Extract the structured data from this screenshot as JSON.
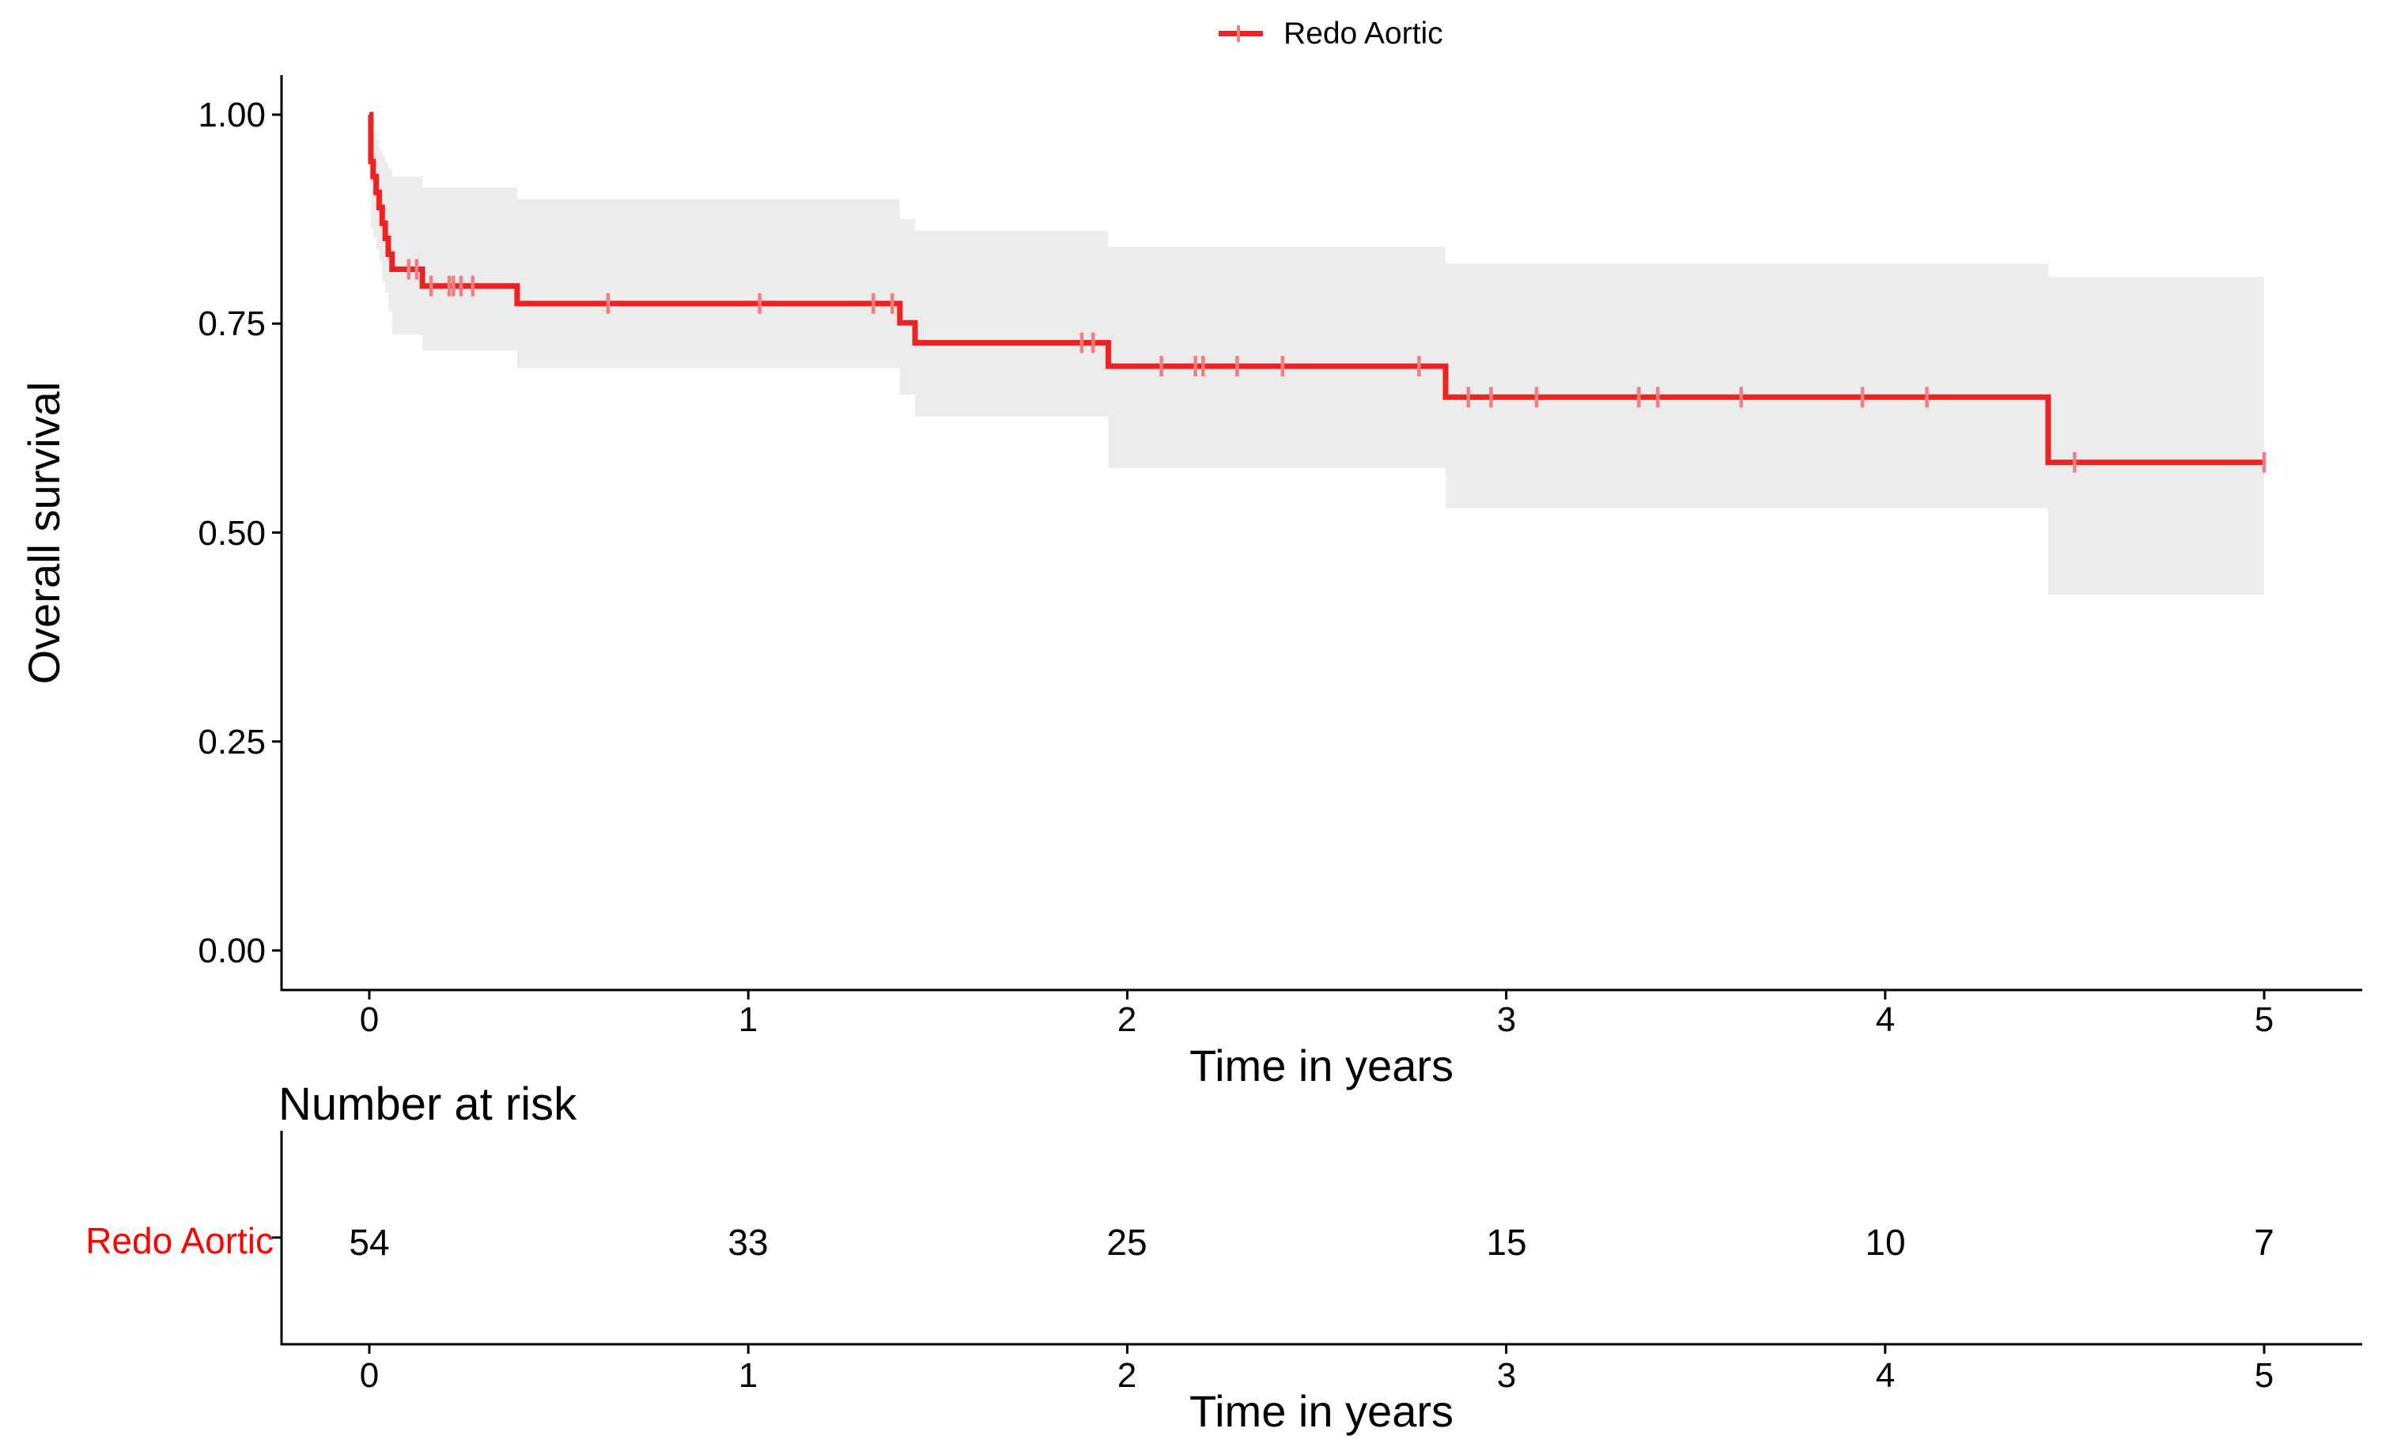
{
  "legend": {
    "label": "Redo Aortic"
  },
  "plot": {
    "y_axis_title": "Overall survival",
    "x_axis_title": "Time in years",
    "y_tick_labels": [
      "1.00",
      "0.75",
      "0.50",
      "0.25",
      "0.00"
    ],
    "x_tick_labels": [
      "0",
      "1",
      "2",
      "3",
      "4",
      "5"
    ]
  },
  "risk_table": {
    "title": "Number at risk",
    "row_label": "Redo Aortic",
    "values": [
      "54",
      "33",
      "25",
      "15",
      "10",
      "7"
    ],
    "x_tick_labels": [
      "0",
      "1",
      "2",
      "3",
      "4",
      "5"
    ],
    "x_axis_title": "Time in years"
  },
  "colors": {
    "curve": "#EE2222",
    "censor": "#F47D80",
    "band": "#ECECEC",
    "axis": "#000000",
    "risk_label": "#FF0000"
  },
  "chart_data": {
    "type": "line",
    "subtype": "kaplan-meier-step",
    "title": "",
    "xlabel": "Time in years",
    "ylabel": "Overall survival",
    "xlim": [
      0,
      5
    ],
    "ylim": [
      0,
      1
    ],
    "x_ticks": [
      0,
      1,
      2,
      3,
      4,
      5
    ],
    "y_ticks": [
      1.0,
      0.75,
      0.5,
      0.25,
      0.0
    ],
    "grid": false,
    "legend_position": "top",
    "series": [
      {
        "name": "Redo Aortic",
        "steps": [
          [
            0.0,
            1.0
          ],
          [
            0.004,
            0.944
          ],
          [
            0.01,
            0.926
          ],
          [
            0.018,
            0.907
          ],
          [
            0.026,
            0.889
          ],
          [
            0.034,
            0.87
          ],
          [
            0.042,
            0.852
          ],
          [
            0.05,
            0.833
          ],
          [
            0.06,
            0.815
          ],
          [
            0.14,
            0.795
          ],
          [
            0.39,
            0.774
          ],
          [
            1.4,
            0.751
          ],
          [
            1.44,
            0.727
          ],
          [
            1.95,
            0.699
          ],
          [
            2.84,
            0.662
          ],
          [
            4.43,
            0.584
          ],
          [
            5.0,
            0.584
          ]
        ],
        "censors": [
          [
            0.104,
            0.815
          ],
          [
            0.125,
            0.815
          ],
          [
            0.163,
            0.795
          ],
          [
            0.211,
            0.795
          ],
          [
            0.222,
            0.795
          ],
          [
            0.242,
            0.795
          ],
          [
            0.273,
            0.795
          ],
          [
            0.63,
            0.774
          ],
          [
            1.03,
            0.774
          ],
          [
            1.33,
            0.774
          ],
          [
            1.38,
            0.774
          ],
          [
            1.88,
            0.727
          ],
          [
            1.91,
            0.727
          ],
          [
            2.09,
            0.699
          ],
          [
            2.18,
            0.699
          ],
          [
            2.2,
            0.699
          ],
          [
            2.29,
            0.699
          ],
          [
            2.41,
            0.699
          ],
          [
            2.77,
            0.699
          ],
          [
            2.9,
            0.662
          ],
          [
            2.96,
            0.662
          ],
          [
            3.08,
            0.662
          ],
          [
            3.35,
            0.662
          ],
          [
            3.4,
            0.662
          ],
          [
            3.62,
            0.662
          ],
          [
            3.94,
            0.662
          ],
          [
            4.11,
            0.662
          ],
          [
            4.5,
            0.584
          ],
          [
            5.0,
            0.584
          ]
        ],
        "ci": [
          [
            0.004,
            0.01,
            0.865,
            0.99
          ],
          [
            0.01,
            0.018,
            0.853,
            0.979
          ],
          [
            0.018,
            0.026,
            0.839,
            0.969
          ],
          [
            0.026,
            0.034,
            0.825,
            0.959
          ],
          [
            0.034,
            0.042,
            0.8,
            0.951
          ],
          [
            0.042,
            0.05,
            0.787,
            0.943
          ],
          [
            0.05,
            0.06,
            0.765,
            0.935
          ],
          [
            0.06,
            0.14,
            0.737,
            0.926
          ],
          [
            0.14,
            0.39,
            0.718,
            0.913
          ],
          [
            0.39,
            1.4,
            0.697,
            0.899
          ],
          [
            1.4,
            1.44,
            0.665,
            0.875
          ],
          [
            1.44,
            1.95,
            0.639,
            0.861
          ],
          [
            1.95,
            2.84,
            0.577,
            0.842
          ],
          [
            2.84,
            4.43,
            0.529,
            0.822
          ],
          [
            4.43,
            5.0,
            0.426,
            0.806
          ]
        ]
      }
    ],
    "risk_table": {
      "title": "Number at risk",
      "rows": [
        {
          "name": "Redo Aortic",
          "times": [
            0,
            1,
            2,
            3,
            4,
            5
          ],
          "values": [
            54,
            33,
            25,
            15,
            10,
            7
          ]
        }
      ]
    }
  }
}
